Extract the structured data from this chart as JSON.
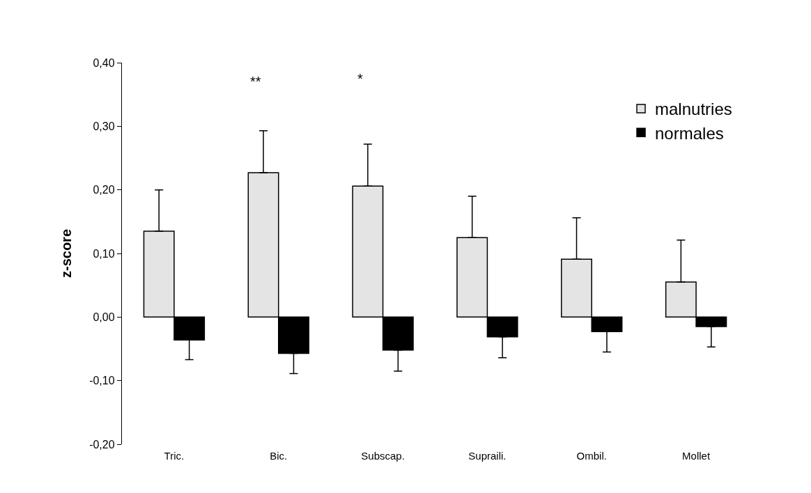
{
  "chart_data": {
    "type": "bar",
    "ylabel": "z-score",
    "categories": [
      "Tric.",
      "Bic.",
      "Subscap.",
      "Supraili.",
      "Ombil.",
      "Mollet"
    ],
    "series": [
      {
        "name": "malnutries",
        "color": "#e4e4e4",
        "values": [
          0.135,
          0.227,
          0.206,
          0.125,
          0.091,
          0.055
        ],
        "errors": [
          [
            0.135,
            0.2
          ],
          [
            0.227,
            0.293
          ],
          [
            0.206,
            0.272
          ],
          [
            0.125,
            0.19
          ],
          [
            0.091,
            0.156
          ],
          [
            0.055,
            0.121
          ]
        ]
      },
      {
        "name": "normales",
        "color": "#000000",
        "values": [
          -0.036,
          -0.057,
          -0.052,
          -0.031,
          -0.023,
          -0.015
        ],
        "errors": [
          [
            -0.067,
            -0.036
          ],
          [
            -0.089,
            -0.057
          ],
          [
            -0.085,
            -0.052
          ],
          [
            -0.064,
            -0.031
          ],
          [
            -0.055,
            -0.023
          ],
          [
            -0.047,
            -0.015
          ]
        ]
      }
    ],
    "ylim": [
      -0.2,
      0.4
    ],
    "yticks": [
      {
        "value": -0.2,
        "label": "-0,20"
      },
      {
        "value": -0.1,
        "label": "-0,10"
      },
      {
        "value": 0,
        "label": "0,00"
      },
      {
        "value": 0.1,
        "label": "0,10"
      },
      {
        "value": 0.2,
        "label": "0,20"
      },
      {
        "value": 0.3,
        "label": "0,30"
      },
      {
        "value": 0.4,
        "label": "0,40"
      }
    ],
    "annotations": [
      "**",
      "*"
    ],
    "grid": false,
    "legend": "top right"
  }
}
